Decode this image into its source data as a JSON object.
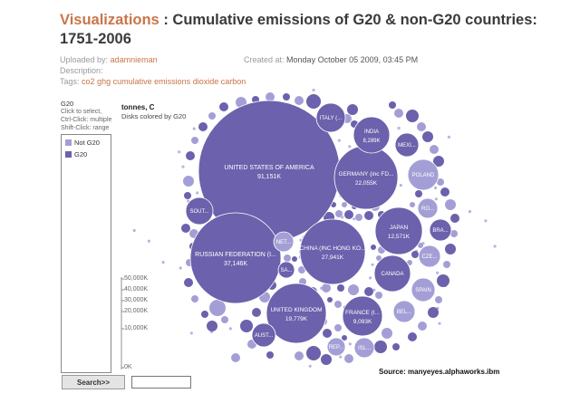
{
  "header": {
    "prefix": "Visualizations",
    "separator": " : ",
    "title": "Cumulative emissions of G20 & non-G20 countries: 1751-2006"
  },
  "meta": {
    "uploaded_label": "Uploaded by:",
    "uploader": "adamnieman",
    "created_label": "Created at:",
    "created_value": "Monday October 05 2009, 03:45 PM",
    "description_label": "Description:",
    "tags_label": "Tags:",
    "tags": [
      "co2",
      "ghg",
      "cumulative",
      "emissions",
      "dioxide",
      "carbon"
    ]
  },
  "legend": {
    "title": "G20",
    "help": [
      "Click to select,",
      "Ctrl-Click: multiple",
      "Shift-Click: range"
    ],
    "items": [
      {
        "label": "Not G20",
        "color": "#a39fd6"
      },
      {
        "label": "G20",
        "color": "#6b61ac"
      }
    ]
  },
  "scale": {
    "title": "tonnes, C",
    "subtitle": "Disks colored by G20",
    "ticks": [
      "50,000K",
      "40,000K",
      "30,000K",
      "20,000K",
      "10,000K",
      "0K"
    ]
  },
  "search": {
    "button_label": "Search>>",
    "placeholder": ""
  },
  "source": "Source: manyeyes.alphaworks.ibm",
  "colors": {
    "g20": "#6b61ac",
    "not_g20": "#a39fd6",
    "accent": "#c8754a"
  },
  "chart_data": {
    "type": "bubble",
    "title": "Cumulative emissions of G20 & non-G20 countries: 1751-2006",
    "unit": "tonnes, C",
    "color_by": "G20",
    "bubbles": [
      {
        "name": "UNITED STATES OF AMERICA",
        "value_label": "91,151K",
        "value": 91151,
        "group": "G20"
      },
      {
        "name": "RUSSIAN FEDERATION (I...",
        "value_label": "37,146K",
        "value": 37146,
        "group": "G20"
      },
      {
        "name": "CHINA (INC HONG KO...",
        "value_label": "27,941K",
        "value": 27941,
        "group": "G20"
      },
      {
        "name": "GERMANY (inc FD...",
        "value_label": "22,055K",
        "value": 22055,
        "group": "G20"
      },
      {
        "name": "UNITED KINGDOM",
        "value_label": "19,779K",
        "value": 19779,
        "group": "G20"
      },
      {
        "name": "JAPAN",
        "value_label": "12,571K",
        "value": 12571,
        "group": "G20"
      },
      {
        "name": "FRANCE (I...",
        "value_label": "9,093K",
        "value": 9093,
        "group": "G20"
      },
      {
        "name": "INDIA",
        "value_label": "8,289K",
        "value": 8289,
        "group": "G20"
      },
      {
        "name": "ITALY (...",
        "value_label": "",
        "group": "G20"
      },
      {
        "name": "CANADA",
        "value_label": "",
        "group": "G20"
      },
      {
        "name": "POLAND",
        "value_label": "",
        "group": "Not G20"
      },
      {
        "name": "MEXI...",
        "value_label": "",
        "group": "G20"
      },
      {
        "name": "SOUT...",
        "value_label": "",
        "group": "G20"
      },
      {
        "name": "AUST...",
        "value_label": "",
        "group": "G20"
      },
      {
        "name": "SPAIN",
        "value_label": "",
        "group": "Not G20"
      },
      {
        "name": "BEL...",
        "value_label": "",
        "group": "Not G20"
      },
      {
        "name": "CZE...",
        "value_label": "",
        "group": "Not G20"
      },
      {
        "name": "BRA...",
        "value_label": "",
        "group": "G20"
      },
      {
        "name": "RO...",
        "value_label": "",
        "group": "Not G20"
      },
      {
        "name": "NET...",
        "value_label": "",
        "group": "Not G20"
      },
      {
        "name": "SA...",
        "value_label": "",
        "group": "G20"
      },
      {
        "name": "REP...",
        "value_label": "",
        "group": "Not G20"
      },
      {
        "name": "ISL...",
        "value_label": "",
        "group": "Not G20"
      }
    ]
  }
}
